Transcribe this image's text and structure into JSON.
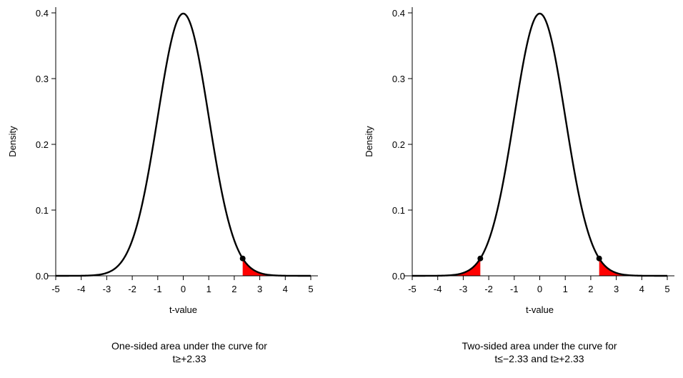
{
  "colors": {
    "curve": "#000000",
    "shade": "#ff0000",
    "marker": "#000000",
    "axis": "#000000",
    "background": "#ffffff"
  },
  "chart_data": [
    {
      "type": "area",
      "distribution": "standard normal density",
      "xlabel": "t-value",
      "ylabel": "Density",
      "xlim": [
        -5,
        5
      ],
      "ylim": [
        0,
        0.4
      ],
      "x_ticks": [
        -5,
        -4,
        -3,
        -2,
        -1,
        0,
        1,
        2,
        3,
        4,
        5
      ],
      "y_ticks": [
        "0.0",
        "0.1",
        "0.2",
        "0.3",
        "0.4"
      ],
      "grid": false,
      "legend": "none",
      "shaded_regions": [
        {
          "from": 2.33,
          "to": 5
        }
      ],
      "critical_points": [
        {
          "x": 2.33,
          "y": 0.0264
        }
      ],
      "caption_line1": "One-sided area under the curve for",
      "caption_line2": "t≥+2.33"
    },
    {
      "type": "area",
      "distribution": "standard normal density",
      "xlabel": "t-value",
      "ylabel": "Density",
      "xlim": [
        -5,
        5
      ],
      "ylim": [
        0,
        0.4
      ],
      "x_ticks": [
        -5,
        -4,
        -3,
        -2,
        -1,
        0,
        1,
        2,
        3,
        4,
        5
      ],
      "y_ticks": [
        "0.0",
        "0.1",
        "0.2",
        "0.3",
        "0.4"
      ],
      "grid": false,
      "legend": "none",
      "shaded_regions": [
        {
          "from": -5,
          "to": -2.33
        },
        {
          "from": 2.33,
          "to": 5
        }
      ],
      "critical_points": [
        {
          "x": -2.33,
          "y": 0.0264
        },
        {
          "x": 2.33,
          "y": 0.0264
        }
      ],
      "caption_line1": "Two-sided area under the curve for",
      "caption_line2": "t≤−2.33 and t≥+2.33"
    }
  ]
}
